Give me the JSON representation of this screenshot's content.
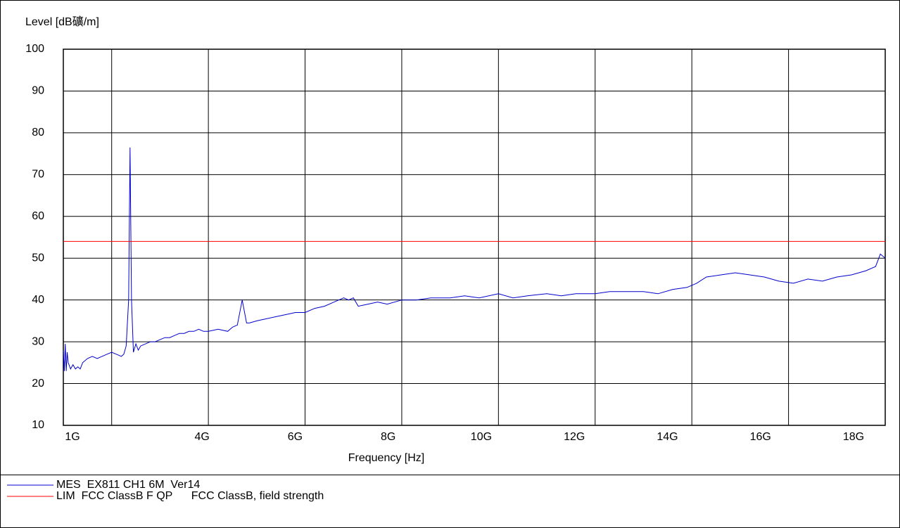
{
  "chart_data": {
    "type": "line",
    "y_label": "Level [dB礦/m]",
    "x_label": "Frequency [Hz]",
    "xlim": [
      1,
      18
    ],
    "ylim": [
      10,
      100
    ],
    "yticks": [
      10,
      20,
      30,
      40,
      50,
      60,
      70,
      80,
      90,
      100
    ],
    "xticks": [
      {
        "value": 1,
        "label": "1G"
      },
      {
        "value": 4,
        "label": "4G"
      },
      {
        "value": 6,
        "label": "6G"
      },
      {
        "value": 8,
        "label": "8G"
      },
      {
        "value": 10,
        "label": "10G"
      },
      {
        "value": 12,
        "label": "12G"
      },
      {
        "value": 14,
        "label": "14G"
      },
      {
        "value": 16,
        "label": "16G"
      },
      {
        "value": 18,
        "label": "18G"
      }
    ],
    "xgrid": [
      2,
      4,
      6,
      8,
      10,
      12,
      14,
      16,
      18
    ],
    "grid": true,
    "series": [
      {
        "name": "MES  EX811 CH1 6M  Ver14",
        "color": "#0000cc",
        "x": [
          1.0,
          1.02,
          1.04,
          1.06,
          1.08,
          1.1,
          1.15,
          1.2,
          1.25,
          1.3,
          1.35,
          1.4,
          1.5,
          1.6,
          1.7,
          1.8,
          1.9,
          2.0,
          2.1,
          2.2,
          2.25,
          2.3,
          2.35,
          2.38,
          2.41,
          2.45,
          2.5,
          2.55,
          2.6,
          2.7,
          2.8,
          2.9,
          3.0,
          3.1,
          3.2,
          3.3,
          3.4,
          3.5,
          3.6,
          3.7,
          3.8,
          3.9,
          4.0,
          4.2,
          4.4,
          4.5,
          4.6,
          4.7,
          4.79,
          4.85,
          5.0,
          5.2,
          5.4,
          5.6,
          5.8,
          6.0,
          6.2,
          6.4,
          6.6,
          6.8,
          6.9,
          7.0,
          7.1,
          7.3,
          7.5,
          7.7,
          8.0,
          8.3,
          8.6,
          9.0,
          9.3,
          9.6,
          10.0,
          10.3,
          10.6,
          11.0,
          11.3,
          11.6,
          12.0,
          12.3,
          12.6,
          13.0,
          13.3,
          13.6,
          13.9,
          14.1,
          14.3,
          14.6,
          14.9,
          15.2,
          15.5,
          15.8,
          16.1,
          16.4,
          16.7,
          17.0,
          17.3,
          17.6,
          17.8,
          17.9,
          18.0
        ],
        "values": [
          28,
          23,
          29.5,
          23,
          27.5,
          25,
          23.5,
          24.5,
          23.5,
          24,
          23.5,
          25,
          26,
          26.5,
          26,
          26.5,
          27,
          27.5,
          27,
          26.5,
          27,
          29,
          40,
          76.5,
          40,
          27.5,
          29.5,
          28,
          29,
          29.5,
          30,
          30,
          30.5,
          31,
          31,
          31.5,
          32,
          32,
          32.5,
          32.5,
          33,
          32.5,
          32.5,
          33,
          32.5,
          33.5,
          34,
          40,
          34.5,
          34.5,
          35,
          35.5,
          36,
          36.5,
          37,
          37,
          38,
          38.5,
          39.5,
          40.5,
          40,
          40.5,
          38.5,
          39,
          39.5,
          39,
          40,
          40,
          40.5,
          40.5,
          41,
          40.5,
          41.5,
          40.5,
          41,
          41.5,
          41,
          41.5,
          41.5,
          42,
          42,
          42,
          41.5,
          42.5,
          43,
          44,
          45.5,
          46,
          46.5,
          46,
          45.5,
          44.5,
          44,
          45,
          44.5,
          45.5,
          46,
          47,
          48,
          51,
          50
        ]
      },
      {
        "name": "LIM  FCC ClassB F QP      FCC ClassB, field strength",
        "color": "#ff0000",
        "x": [
          1,
          18
        ],
        "values": [
          54,
          54
        ]
      }
    ]
  }
}
